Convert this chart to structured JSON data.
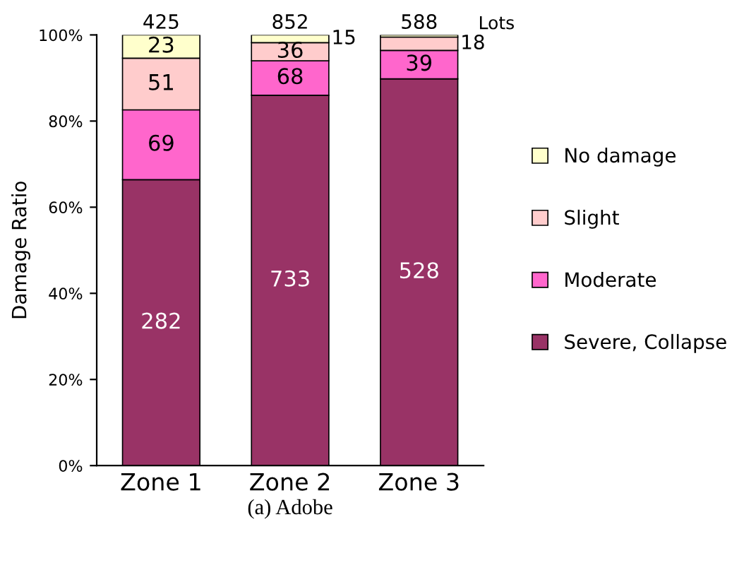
{
  "chart_data": {
    "type": "bar",
    "stacked": true,
    "xlabel": "(a) Adobe",
    "ylabel": "Damage Ratio",
    "categories": [
      "Zone 1",
      "Zone 2",
      "Zone 3"
    ],
    "series": [
      {
        "name": "Severe, Collapse",
        "color": "#993366",
        "values": [
          66.4,
          86.0,
          89.8
        ]
      },
      {
        "name": "Moderate",
        "color": "#ff66cc",
        "values": [
          16.2,
          8.0,
          6.6
        ]
      },
      {
        "name": "Slight",
        "color": "#ffcccc",
        "values": [
          12.0,
          4.2,
          3.1
        ]
      },
      {
        "name": "No damage",
        "color": "#ffffcc",
        "values": [
          5.4,
          1.8,
          0.5
        ]
      }
    ],
    "annotations": [
      "425",
      "852",
      "588",
      "Lots",
      "282",
      "733",
      "528",
      "69",
      "68",
      "39",
      "51",
      "36",
      "18",
      "23",
      "15"
    ],
    "ylim": [
      0,
      100
    ],
    "yticks": [
      {
        "value": 0,
        "label": "0%"
      },
      {
        "value": 20,
        "label": "20%"
      },
      {
        "value": 40,
        "label": "40%"
      },
      {
        "value": 60,
        "label": "60%"
      },
      {
        "value": 80,
        "label": "80%"
      },
      {
        "value": 100,
        "label": "100%"
      }
    ],
    "legend": "right",
    "grid": false
  }
}
